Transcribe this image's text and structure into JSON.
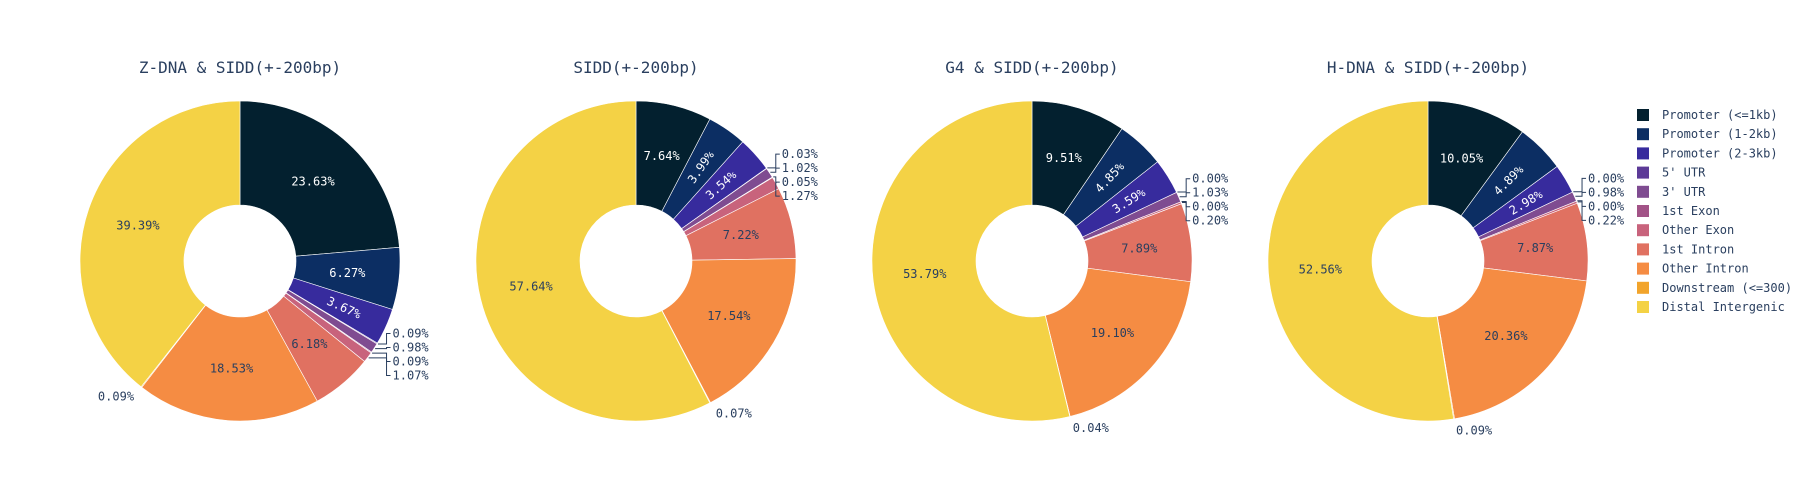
{
  "colors": [
    "#03202f",
    "#0c2e63",
    "#372b9d",
    "#5c3a97",
    "#7f4c91",
    "#a25387",
    "#c8637c",
    "#e07161",
    "#f58c43",
    "#f2a42b",
    "#f4d245"
  ],
  "chart_data": [
    {
      "type": "pie",
      "hole": 0.35,
      "title": "Z-DNA & SIDD(+-200bp)",
      "labels": [
        "Promoter (<=1kb)",
        "Promoter (1-2kb)",
        "Promoter (2-3kb)",
        "5' UTR",
        "3' UTR",
        "1st Exon",
        "Other Exon",
        "1st Intron",
        "Other Intron",
        "Downstream (<=300)",
        "Distal Intergenic"
      ],
      "values": [
        23.63,
        6.27,
        3.67,
        0.09,
        0.98,
        0.09,
        1.07,
        6.18,
        18.53,
        0.09,
        39.39
      ],
      "text": [
        "23.63%",
        "6.27%",
        "3.67%",
        "0.09%",
        "0.98%",
        "0.09%",
        "1.07%",
        "6.18%",
        "18.53%",
        "0.09%",
        "39.39%"
      ]
    },
    {
      "type": "pie",
      "hole": 0.35,
      "title": "SIDD(+-200bp)",
      "labels": [
        "Promoter (<=1kb)",
        "Promoter (1-2kb)",
        "Promoter (2-3kb)",
        "5' UTR",
        "3' UTR",
        "1st Exon",
        "Other Exon",
        "1st Intron",
        "Other Intron",
        "Downstream (<=300)",
        "Distal Intergenic"
      ],
      "values": [
        7.64,
        3.99,
        3.54,
        0.03,
        1.02,
        0.05,
        1.27,
        7.22,
        17.54,
        0.07,
        57.64
      ],
      "text": [
        "7.64%",
        "3.99%",
        "3.54%",
        "0.03%",
        "1.02%",
        "0.05%",
        "1.27%",
        "7.22%",
        "17.54%",
        "0.07%",
        "57.64%"
      ]
    },
    {
      "type": "pie",
      "hole": 0.35,
      "title": "G4 & SIDD(+-200bp)",
      "labels": [
        "Promoter (<=1kb)",
        "Promoter (1-2kb)",
        "Promoter (2-3kb)",
        "5' UTR",
        "3' UTR",
        "1st Exon",
        "Other Exon",
        "1st Intron",
        "Other Intron",
        "Downstream (<=300)",
        "Distal Intergenic"
      ],
      "values": [
        9.51,
        4.85,
        3.59,
        0.0,
        1.03,
        0.0,
        0.2,
        7.89,
        19.1,
        0.04,
        53.79
      ],
      "text": [
        "9.51%",
        "4.85%",
        "3.59%",
        "0.00%",
        "1.03%",
        "0.00%",
        "0.20%",
        "7.89%",
        "19.10%",
        "0.04%",
        "53.79%"
      ]
    },
    {
      "type": "pie",
      "hole": 0.35,
      "title": "H-DNA & SIDD(+-200bp)",
      "labels": [
        "Promoter (<=1kb)",
        "Promoter (1-2kb)",
        "Promoter (2-3kb)",
        "5' UTR",
        "3' UTR",
        "1st Exon",
        "Other Exon",
        "1st Intron",
        "Other Intron",
        "Downstream (<=300)",
        "Distal Intergenic"
      ],
      "values": [
        10.05,
        4.89,
        2.98,
        0.0,
        0.98,
        0.0,
        0.22,
        7.87,
        20.36,
        0.09,
        52.56
      ],
      "text": [
        "10.05%",
        "4.89%",
        "2.98%",
        "0.00%",
        "0.98%",
        "0.00%",
        "0.22%",
        "7.87%",
        "20.36%",
        "0.09%",
        "52.56%"
      ]
    }
  ],
  "legend": {
    "placement": "right",
    "items": [
      "Promoter (<=1kb)",
      "Promoter (1-2kb)",
      "Promoter (2-3kb)",
      "5' UTR",
      "3' UTR",
      "1st Exon",
      "Other Exon",
      "1st Intron",
      "Other Intron",
      "Downstream (<=300)",
      "Distal Intergenic"
    ]
  }
}
